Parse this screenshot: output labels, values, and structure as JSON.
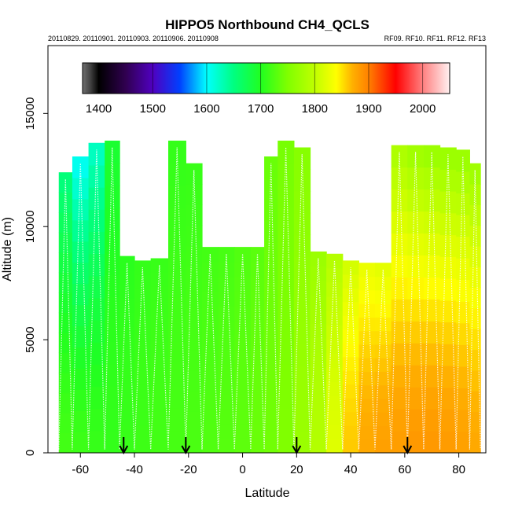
{
  "chart_data": {
    "type": "heatmap",
    "title": "HIPPO5 Northbound CH4_QCLS",
    "subtitle_left": "20110829. 20110901. 20110903. 20110906. 20110908",
    "subtitle_right": "RF09. RF10. RF11. RF12. RF13",
    "xlabel": "Latitude",
    "ylabel": "Altitude (m)",
    "xlim": [
      -72,
      90
    ],
    "ylim": [
      0,
      18000
    ],
    "x_ticks": [
      -60,
      -40,
      -20,
      0,
      20,
      40,
      60,
      80
    ],
    "x_tick_labels": [
      "-60",
      "-40",
      "-20",
      "0",
      "20",
      "40",
      "60",
      "80"
    ],
    "y_ticks": [
      0,
      5000,
      10000,
      15000
    ],
    "y_tick_labels": [
      "0",
      "5000",
      "10000",
      "15000"
    ],
    "colorbar": {
      "range": [
        1370,
        2050
      ],
      "ticks": [
        1400,
        1500,
        1600,
        1700,
        1800,
        1900,
        2000
      ],
      "tick_labels": [
        "1400",
        "1500",
        "1600",
        "1700",
        "1800",
        "1900",
        "2000"
      ],
      "stops": [
        {
          "v": 1370,
          "c": "#707070"
        },
        {
          "v": 1385,
          "c": "#404040"
        },
        {
          "v": 1400,
          "c": "#000000"
        },
        {
          "v": 1450,
          "c": "#300050"
        },
        {
          "v": 1500,
          "c": "#5000c0"
        },
        {
          "v": 1550,
          "c": "#0040ff"
        },
        {
          "v": 1600,
          "c": "#00ffff"
        },
        {
          "v": 1650,
          "c": "#00ff80"
        },
        {
          "v": 1700,
          "c": "#20ff20"
        },
        {
          "v": 1750,
          "c": "#80ff00"
        },
        {
          "v": 1800,
          "c": "#c0ff00"
        },
        {
          "v": 1840,
          "c": "#ffff00"
        },
        {
          "v": 1870,
          "c": "#ffb000"
        },
        {
          "v": 1900,
          "c": "#ff8000"
        },
        {
          "v": 1950,
          "c": "#ff0000"
        },
        {
          "v": 2000,
          "c": "#ff8080"
        },
        {
          "v": 2050,
          "c": "#fff0f0"
        }
      ]
    },
    "arrows_latitude": [
      -44,
      -21,
      20,
      61
    ],
    "columns": [
      {
        "lat": -66,
        "top": 12400,
        "v_low": 1718,
        "v_high": 1650
      },
      {
        "lat": -60,
        "top": 13100,
        "v_low": 1715,
        "v_high": 1600
      },
      {
        "lat": -54,
        "top": 13700,
        "v_low": 1712,
        "v_high": 1620
      },
      {
        "lat": -48,
        "top": 13800,
        "v_low": 1710,
        "v_high": 1690
      },
      {
        "lat": -43,
        "top": 8700,
        "v_low": 1712,
        "v_high": 1705
      },
      {
        "lat": -37,
        "top": 8500,
        "v_low": 1715,
        "v_high": 1710
      },
      {
        "lat": -31,
        "top": 8600,
        "v_low": 1718,
        "v_high": 1712
      },
      {
        "lat": -24,
        "top": 13800,
        "v_low": 1720,
        "v_high": 1710
      },
      {
        "lat": -18,
        "top": 12800,
        "v_low": 1722,
        "v_high": 1712
      },
      {
        "lat": -12,
        "top": 9100,
        "v_low": 1725,
        "v_high": 1718
      },
      {
        "lat": -6,
        "top": 9100,
        "v_low": 1728,
        "v_high": 1720
      },
      {
        "lat": 0,
        "top": 9100,
        "v_low": 1732,
        "v_high": 1725
      },
      {
        "lat": 6,
        "top": 9100,
        "v_low": 1738,
        "v_high": 1730
      },
      {
        "lat": 10,
        "top": 13100,
        "v_low": 1742,
        "v_high": 1738
      },
      {
        "lat": 16,
        "top": 13800,
        "v_low": 1750,
        "v_high": 1745
      },
      {
        "lat": 22,
        "top": 13500,
        "v_low": 1770,
        "v_high": 1755
      },
      {
        "lat": 28,
        "top": 8900,
        "v_low": 1790,
        "v_high": 1770
      },
      {
        "lat": 34,
        "top": 8800,
        "v_low": 1820,
        "v_high": 1790
      },
      {
        "lat": 40,
        "top": 8500,
        "v_low": 1860,
        "v_high": 1810
      },
      {
        "lat": 46,
        "top": 8400,
        "v_low": 1875,
        "v_high": 1825
      },
      {
        "lat": 52,
        "top": 8400,
        "v_low": 1880,
        "v_high": 1820
      },
      {
        "lat": 58,
        "top": 13600,
        "v_low": 1882,
        "v_high": 1780
      },
      {
        "lat": 64,
        "top": 13600,
        "v_low": 1885,
        "v_high": 1770
      },
      {
        "lat": 70,
        "top": 13600,
        "v_low": 1885,
        "v_high": 1765
      },
      {
        "lat": 76,
        "top": 13500,
        "v_low": 1883,
        "v_high": 1765
      },
      {
        "lat": 82,
        "top": 13400,
        "v_low": 1880,
        "v_high": 1765
      },
      {
        "lat": 86,
        "top": 12800,
        "v_low": 1875,
        "v_high": 1770
      }
    ]
  }
}
